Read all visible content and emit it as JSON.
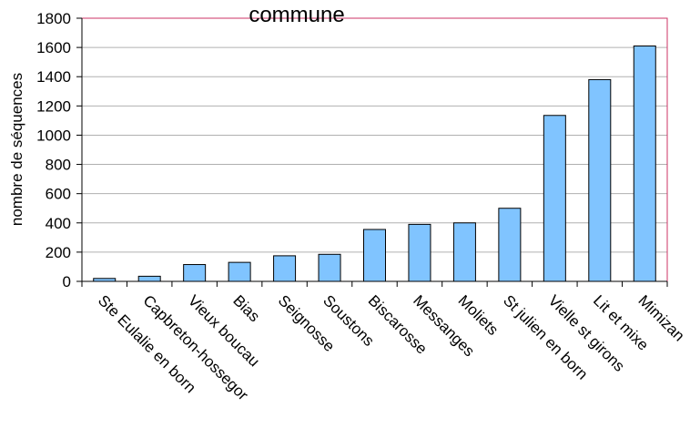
{
  "chart_data": {
    "type": "bar",
    "title": "commune",
    "xlabel": "",
    "ylabel": "nombre de séquences",
    "ylim": [
      0,
      1800
    ],
    "yticks": [
      0,
      200,
      400,
      600,
      800,
      1000,
      1200,
      1400,
      1600,
      1800
    ],
    "grid": true,
    "categories": [
      "Ste Eulalie en born",
      "Capbreton-hossegor",
      "Vieux boucau",
      "Bias",
      "Seignosse",
      "Soustons",
      "Biscarosse",
      "Messanges",
      "Moliets",
      "St julien en born",
      "Vielle st girons",
      "Lit et mixe",
      "Mimizan"
    ],
    "values": [
      20,
      35,
      115,
      130,
      175,
      185,
      355,
      390,
      400,
      500,
      1135,
      1380,
      1610
    ],
    "bar_color": "#80c4ff",
    "frame_color": "#cc3366"
  }
}
